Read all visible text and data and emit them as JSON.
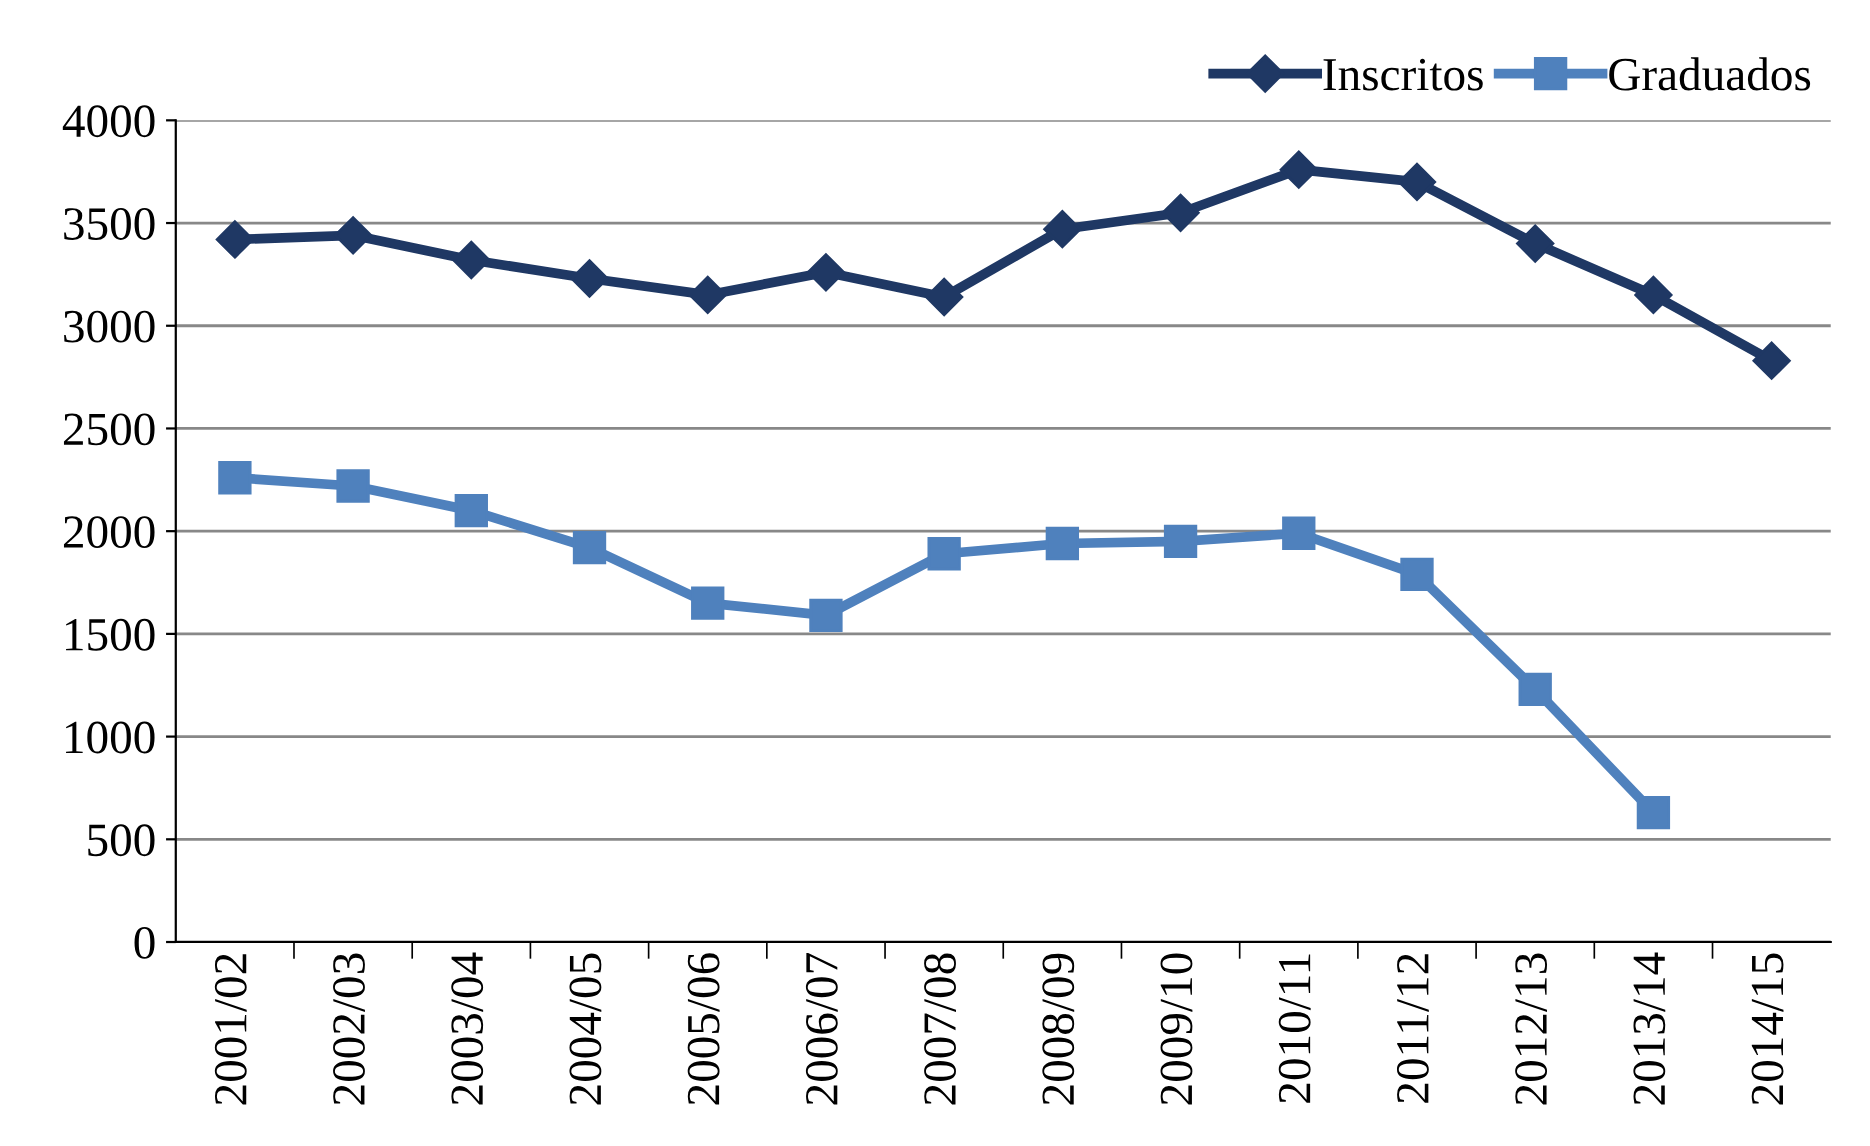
{
  "chart_data": {
    "type": "line",
    "categories": [
      "2001/02",
      "2002/03",
      "2003/04",
      "2004/05",
      "2005/06",
      "2006/07",
      "2007/08",
      "2008/09",
      "2009/10",
      "2010/11",
      "2011/12",
      "2012/13",
      "2013/14",
      "2014/15"
    ],
    "series": [
      {
        "name": "Inscritos",
        "color": "#1f3864",
        "marker": "diamond",
        "values": [
          3420,
          3440,
          3320,
          3230,
          3150,
          3260,
          3140,
          3470,
          3550,
          3760,
          3700,
          3400,
          3150,
          2830
        ]
      },
      {
        "name": "Graduados",
        "color": "#4f81bd",
        "marker": "square",
        "values": [
          2260,
          2220,
          2100,
          1920,
          1650,
          1590,
          1890,
          1940,
          1950,
          1990,
          1790,
          1230,
          630,
          null
        ]
      }
    ],
    "ylim": [
      0,
      4000
    ],
    "yticks": [
      0,
      500,
      1000,
      1500,
      2000,
      2500,
      3000,
      3500,
      4000
    ],
    "grid": "y",
    "legend": "top right",
    "line_style": "solid"
  }
}
